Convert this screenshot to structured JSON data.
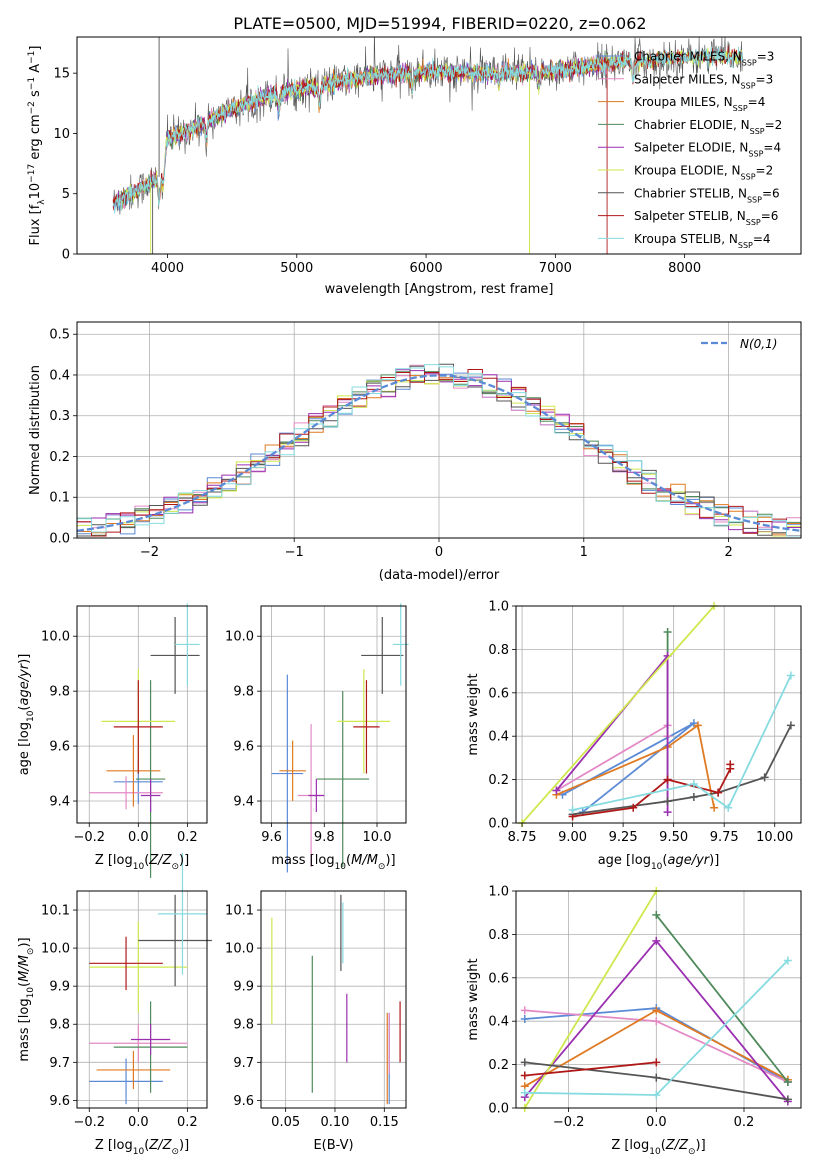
{
  "figure_title": "PLATE=0500, MJD=51994, FIBERID=0220, z=0.062",
  "colors": {
    "Chabrier MILES": "#5b8ad6",
    "Salpeter MILES": "#e38ac6",
    "Kroupa MILES": "#e07a22",
    "Chabrier ELODIE": "#4f8a5b",
    "Salpeter ELODIE": "#9a2fb0",
    "Kroupa ELODIE": "#cfe84e",
    "Chabrier STELIB": "#555555",
    "Salpeter STELIB": "#b01818",
    "Kroupa STELIB": "#86dbe0"
  },
  "chart_data": [
    {
      "id": "spectrum",
      "type": "line",
      "xlabel": "wavelength [Angstrom, rest frame]",
      "ylabel": "Flux [f",
      "ylabel_parts": [
        "Flux [f",
        "λ",
        "10",
        "−17",
        " erg cm",
        "−2",
        " s",
        "−1",
        " A",
        "−1",
        "]"
      ],
      "xlim": [
        3300,
        8900
      ],
      "ylim": [
        0,
        18
      ],
      "xticks": [
        "4000",
        "5000",
        "6000",
        "7000",
        "8000"
      ],
      "yticks": [
        "0",
        "5",
        "10",
        "15"
      ],
      "legend_position": "right",
      "legend": [
        {
          "name": "Chabrier MILES",
          "n_ssp": "3"
        },
        {
          "name": "Salpeter MILES",
          "n_ssp": "3"
        },
        {
          "name": "Kroupa MILES",
          "n_ssp": "4"
        },
        {
          "name": "Chabrier ELODIE",
          "n_ssp": "2"
        },
        {
          "name": "Salpeter ELODIE",
          "n_ssp": "4"
        },
        {
          "name": "Kroupa ELODIE",
          "n_ssp": "2"
        },
        {
          "name": "Chabrier STELIB",
          "n_ssp": "6"
        },
        {
          "name": "Salpeter STELIB",
          "n_ssp": "6"
        },
        {
          "name": "Kroupa STELIB",
          "n_ssp": "4"
        }
      ],
      "legend_sub": "SSP",
      "continuum_knots": [
        [
          3580,
          4.2
        ],
        [
          3800,
          5.5
        ],
        [
          3950,
          6.5
        ],
        [
          4000,
          9.5
        ],
        [
          4200,
          10.5
        ],
        [
          4500,
          12.0
        ],
        [
          4800,
          13.2
        ],
        [
          5200,
          14.0
        ],
        [
          5600,
          14.8
        ],
        [
          6000,
          15.1
        ],
        [
          6500,
          15.0
        ],
        [
          7000,
          15.2
        ],
        [
          7400,
          15.8
        ],
        [
          7800,
          16.2
        ],
        [
          8300,
          16.4
        ],
        [
          8450,
          16.4
        ]
      ]
    },
    {
      "id": "residuals",
      "type": "step",
      "xlabel": "(data-model)/error",
      "ylabel": "Normed distribution",
      "xlim": [
        -2.5,
        2.5
      ],
      "ylim": [
        0,
        0.53
      ],
      "xticks": [
        "−2",
        "−1",
        "0",
        "1",
        "2"
      ],
      "yticks": [
        "0.0",
        "0.1",
        "0.2",
        "0.3",
        "0.4",
        "0.5"
      ],
      "bin_width": 0.1,
      "legend_position": "upper right",
      "legend_label": "N(0,1)",
      "gaussian": {
        "mean": 0,
        "sigma": 1
      }
    },
    {
      "id": "age_vs_Z",
      "type": "errorbar",
      "xlabel": "Z [log10(Z/Z⊙)]",
      "ylabel": "age  [log10(age/yr)]",
      "xlim": [
        -0.25,
        0.28
      ],
      "ylim": [
        9.32,
        10.11
      ],
      "xticks": [
        "−0.2",
        "0.0",
        "0.2"
      ],
      "yticks": [
        "9.4",
        "9.6",
        "9.8",
        "10.0"
      ],
      "points": [
        {
          "model": "Chabrier MILES",
          "x": 0.0,
          "y": 9.47,
          "xerr": 0.1,
          "yerr": 0.08
        },
        {
          "model": "Salpeter MILES",
          "x": -0.05,
          "y": 9.43,
          "xerr": 0.15,
          "yerr": 0.06
        },
        {
          "model": "Kroupa MILES",
          "x": -0.02,
          "y": 9.51,
          "xerr": 0.11,
          "yerr": 0.13
        },
        {
          "model": "Chabrier ELODIE",
          "x": 0.05,
          "y": 9.48,
          "xerr": 0.06,
          "yerr": 0.36
        },
        {
          "model": "Salpeter ELODIE",
          "x": 0.05,
          "y": 9.42,
          "xerr": 0.04,
          "yerr": 0.06
        },
        {
          "model": "Kroupa ELODIE",
          "x": 0.0,
          "y": 9.69,
          "xerr": 0.15,
          "yerr": 0.19
        },
        {
          "model": "Chabrier STELIB",
          "x": 0.15,
          "y": 9.93,
          "xerr": 0.1,
          "yerr": 0.14
        },
        {
          "model": "Salpeter STELIB",
          "x": 0.0,
          "y": 9.67,
          "xerr": 0.1,
          "yerr": 0.17
        },
        {
          "model": "Kroupa STELIB",
          "x": 0.2,
          "y": 9.97,
          "xerr": 0.05,
          "yerr": 0.15
        }
      ]
    },
    {
      "id": "age_vs_mass",
      "type": "errorbar",
      "xlabel": "mass [log10(M/M⊙)]",
      "ylabel": "",
      "xlim": [
        9.56,
        10.11
      ],
      "ylim": [
        9.32,
        10.11
      ],
      "xticks": [
        "9.6",
        "9.8",
        "10.0"
      ],
      "yticks": [
        "9.4",
        "9.6",
        "9.8",
        "10.0"
      ],
      "points": [
        {
          "model": "Chabrier MILES",
          "x": 9.66,
          "y": 9.5,
          "xerr": 0.06,
          "yerr": 0.36
        },
        {
          "model": "Salpeter MILES",
          "x": 9.75,
          "y": 9.42,
          "xerr": 0.05,
          "yerr": 0.26
        },
        {
          "model": "Kroupa MILES",
          "x": 9.68,
          "y": 9.51,
          "xerr": 0.05,
          "yerr": 0.11
        },
        {
          "model": "Chabrier ELODIE",
          "x": 9.87,
          "y": 9.48,
          "xerr": 0.1,
          "yerr": 0.32
        },
        {
          "model": "Salpeter ELODIE",
          "x": 9.77,
          "y": 9.42,
          "xerr": 0.03,
          "yerr": 0.06
        },
        {
          "model": "Kroupa ELODIE",
          "x": 9.95,
          "y": 9.69,
          "xerr": 0.1,
          "yerr": 0.19
        },
        {
          "model": "Chabrier STELIB",
          "x": 10.02,
          "y": 9.93,
          "xerr": 0.08,
          "yerr": 0.14
        },
        {
          "model": "Salpeter STELIB",
          "x": 9.96,
          "y": 9.67,
          "xerr": 0.05,
          "yerr": 0.17
        },
        {
          "model": "Kroupa STELIB",
          "x": 10.09,
          "y": 9.97,
          "xerr": 0.03,
          "yerr": 0.15
        }
      ]
    },
    {
      "id": "mass_weight_vs_age",
      "type": "line",
      "xlabel": "age  [log10(age/yr)]",
      "ylabel": "mass weight",
      "xlim": [
        8.72,
        10.13
      ],
      "ylim": [
        0,
        1.0
      ],
      "xticks": [
        "8.75",
        "9.00",
        "9.25",
        "9.50",
        "9.75",
        "10.00"
      ],
      "yticks": [
        "0.0",
        "0.2",
        "0.4",
        "0.6",
        "0.8",
        "1.0"
      ],
      "series": [
        {
          "model": "Chabrier MILES",
          "x": [
            8.95,
            9.6,
            9.05
          ],
          "y": [
            0.13,
            0.46,
            0.05
          ]
        },
        {
          "model": "Salpeter MILES",
          "x": [
            8.92,
            9.47,
            9.47
          ],
          "y": [
            0.15,
            0.45,
            0.4
          ]
        },
        {
          "model": "Kroupa MILES",
          "x": [
            8.92,
            9.47,
            9.62,
            9.7
          ],
          "y": [
            0.13,
            0.35,
            0.45,
            0.07
          ]
        },
        {
          "model": "Chabrier ELODIE",
          "x": [
            9.47,
            9.47
          ],
          "y": [
            0.1,
            0.88
          ]
        },
        {
          "model": "Salpeter ELODIE",
          "x": [
            8.92,
            9.47,
            9.47,
            9.47
          ],
          "y": [
            0.15,
            0.77,
            0.05,
            0.2
          ]
        },
        {
          "model": "Kroupa ELODIE",
          "x": [
            8.75,
            9.7
          ],
          "y": [
            0.0,
            1.0
          ]
        },
        {
          "model": "Chabrier STELIB",
          "x": [
            9.0,
            9.47,
            9.6,
            9.72,
            9.95,
            10.08
          ],
          "y": [
            0.04,
            0.1,
            0.12,
            0.14,
            0.21,
            0.45
          ]
        },
        {
          "model": "Salpeter STELIB",
          "x": [
            9.0,
            9.3,
            9.47,
            9.72,
            9.78,
            9.78
          ],
          "y": [
            0.03,
            0.07,
            0.2,
            0.14,
            0.25,
            0.27
          ]
        },
        {
          "model": "Kroupa STELIB",
          "x": [
            9.0,
            9.6,
            9.77,
            10.08
          ],
          "y": [
            0.06,
            0.18,
            0.07,
            0.68
          ]
        }
      ]
    },
    {
      "id": "mass_vs_Z",
      "type": "errorbar",
      "xlabel": "Z [log10(Z/Z⊙)]",
      "ylabel": "mass [log10(M/M⊙)]",
      "xlim": [
        -0.25,
        0.28
      ],
      "ylim": [
        9.58,
        10.15
      ],
      "xticks": [
        "−0.2",
        "0.0",
        "0.2"
      ],
      "yticks": [
        "9.6",
        "9.7",
        "9.8",
        "9.9",
        "10.0",
        "10.1"
      ],
      "points": [
        {
          "model": "Chabrier MILES",
          "x": -0.05,
          "y": 9.65,
          "xerr": 0.15,
          "yerr": 0.06
        },
        {
          "model": "Salpeter MILES",
          "x": 0.0,
          "y": 9.75,
          "xerr": 0.2,
          "yerr": 0.05
        },
        {
          "model": "Kroupa MILES",
          "x": -0.02,
          "y": 9.68,
          "xerr": 0.15,
          "yerr": 0.05
        },
        {
          "model": "Chabrier ELODIE",
          "x": 0.05,
          "y": 9.74,
          "xerr": 0.15,
          "yerr": 0.12
        },
        {
          "model": "Salpeter ELODIE",
          "x": 0.05,
          "y": 9.76,
          "xerr": 0.08,
          "yerr": 0.04
        },
        {
          "model": "Kroupa ELODIE",
          "x": 0.0,
          "y": 9.95,
          "xerr": 0.2,
          "yerr": 0.12
        },
        {
          "model": "Chabrier STELIB",
          "x": 0.15,
          "y": 10.02,
          "xerr": 0.15,
          "yerr": 0.12
        },
        {
          "model": "Salpeter STELIB",
          "x": -0.05,
          "y": 9.96,
          "xerr": 0.15,
          "yerr": 0.07
        },
        {
          "model": "Kroupa STELIB",
          "x": 0.18,
          "y": 10.09,
          "xerr": 0.1,
          "yerr": 0.16
        }
      ]
    },
    {
      "id": "mass_vs_ebv",
      "type": "errorbar",
      "xlabel": "E(B-V)",
      "ylabel": "",
      "xlim": [
        0.025,
        0.172
      ],
      "ylim": [
        9.58,
        10.15
      ],
      "xticks": [
        "0.05",
        "0.10",
        "0.15"
      ],
      "yticks": [
        "9.6",
        "9.7",
        "9.8",
        "9.9",
        "10.0",
        "10.1"
      ],
      "points": [
        {
          "model": "Chabrier MILES",
          "x": 0.155,
          "y": 9.71,
          "xerr": 0,
          "yerr": 0.12
        },
        {
          "model": "Salpeter MILES",
          "x": 0.155,
          "y": 9.75,
          "xerr": 0,
          "yerr": 0.08
        },
        {
          "model": "Kroupa MILES",
          "x": 0.153,
          "y": 9.71,
          "xerr": 0,
          "yerr": 0.12
        },
        {
          "model": "Chabrier ELODIE",
          "x": 0.077,
          "y": 9.8,
          "xerr": 0,
          "yerr": 0.18
        },
        {
          "model": "Salpeter ELODIE",
          "x": 0.112,
          "y": 9.79,
          "xerr": 0,
          "yerr": 0.09
        },
        {
          "model": "Kroupa ELODIE",
          "x": 0.036,
          "y": 9.94,
          "xerr": 0,
          "yerr": 0.14
        },
        {
          "model": "Chabrier STELIB",
          "x": 0.106,
          "y": 10.04,
          "xerr": 0,
          "yerr": 0.1
        },
        {
          "model": "Salpeter STELIB",
          "x": 0.166,
          "y": 9.78,
          "xerr": 0,
          "yerr": 0.08
        },
        {
          "model": "Kroupa STELIB",
          "x": 0.108,
          "y": 10.04,
          "xerr": 0,
          "yerr": 0.08
        }
      ]
    },
    {
      "id": "mass_weight_vs_Z",
      "type": "line",
      "xlabel": "Z [log10(Z/Z⊙)]",
      "ylabel": "mass weight",
      "xlim": [
        -0.32,
        0.33
      ],
      "ylim": [
        0,
        1.0
      ],
      "xticks": [
        "−0.2",
        "0.0",
        "0.2"
      ],
      "yticks": [
        "0.0",
        "0.2",
        "0.4",
        "0.6",
        "0.8",
        "1.0"
      ],
      "series": [
        {
          "model": "Chabrier MILES",
          "x": [
            -0.3,
            0.0,
            0.3
          ],
          "y": [
            0.41,
            0.46,
            0.12
          ]
        },
        {
          "model": "Salpeter MILES",
          "x": [
            -0.3,
            0.0,
            0.3
          ],
          "y": [
            0.45,
            0.4,
            0.12
          ]
        },
        {
          "model": "Kroupa MILES",
          "x": [
            -0.3,
            0.0,
            0.3
          ],
          "y": [
            0.1,
            0.45,
            0.13
          ]
        },
        {
          "model": "Chabrier ELODIE",
          "x": [
            0.0,
            0.3
          ],
          "y": [
            0.89,
            0.12
          ]
        },
        {
          "model": "Salpeter ELODIE",
          "x": [
            -0.3,
            0.0,
            0.3
          ],
          "y": [
            0.05,
            0.77,
            0.03
          ]
        },
        {
          "model": "Kroupa ELODIE",
          "x": [
            -0.3,
            0.0
          ],
          "y": [
            0.0,
            1.0
          ]
        },
        {
          "model": "Chabrier STELIB",
          "x": [
            -0.3,
            0.0,
            0.3
          ],
          "y": [
            0.21,
            0.14,
            0.04
          ]
        },
        {
          "model": "Salpeter STELIB",
          "x": [
            -0.3,
            0.0
          ],
          "y": [
            0.15,
            0.21
          ]
        },
        {
          "model": "Kroupa STELIB",
          "x": [
            -0.3,
            0.0,
            0.3
          ],
          "y": [
            0.07,
            0.06,
            0.68
          ]
        }
      ]
    }
  ]
}
